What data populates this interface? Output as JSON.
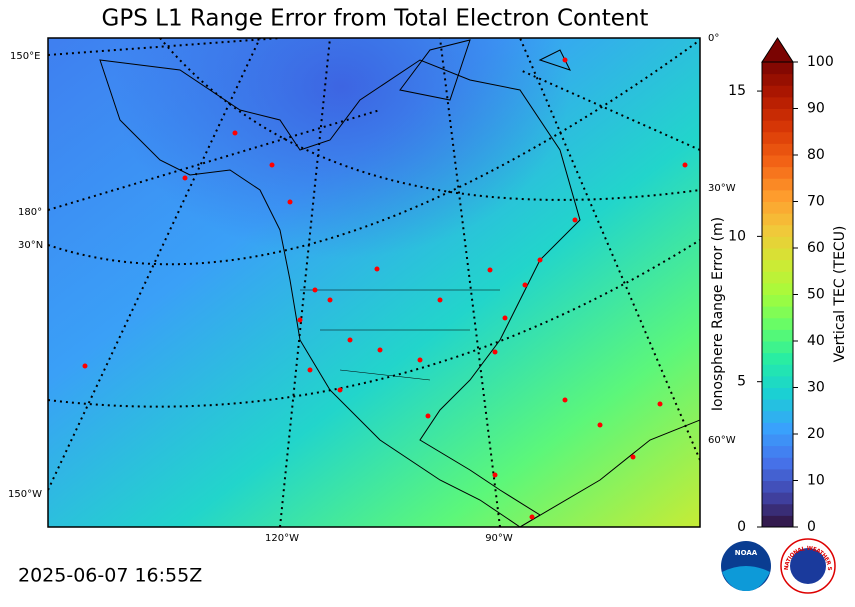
{
  "title": "GPS L1 Range Error from Total Electron Content",
  "timestamp": "2025-06-07 16:55Z",
  "map": {
    "labels": [
      "150°E",
      "180°",
      "30°N",
      "150°W",
      "120°W",
      "90°W",
      "0°",
      "30°W",
      "60°W"
    ]
  },
  "colorbar": {
    "left_label": "Ionosphere Range Error (m)",
    "left_lim": [
      0,
      16
    ],
    "left_ticks": [
      0,
      5,
      10,
      15
    ],
    "right_label": "Vertical TEC (TECU)",
    "right_lim": [
      0,
      100
    ],
    "right_ticks": [
      0,
      10,
      20,
      30,
      40,
      50,
      60,
      70,
      80,
      90,
      100
    ],
    "colors": [
      "#30123b",
      "#4145ab",
      "#4675ed",
      "#39a2fc",
      "#1bcfd4",
      "#24eca6",
      "#61fc6c",
      "#a4fc3b",
      "#d1e834",
      "#f3c63a",
      "#fe9b2d",
      "#f36315",
      "#d93806",
      "#b11901",
      "#7a0402"
    ]
  },
  "logos": {
    "noaa": "NOAA",
    "nws": "NATIONAL WEATHER SERVICE"
  }
}
